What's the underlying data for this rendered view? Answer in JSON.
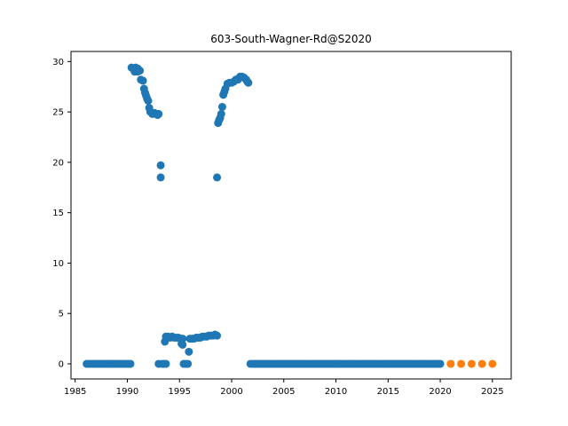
{
  "chart_data": {
    "type": "scatter",
    "title": "603-South-Wagner-Rd@S2020",
    "xlabel": "",
    "ylabel": "",
    "xlim": [
      1984.6,
      2026.8
    ],
    "ylim": [
      -1.5,
      31.0
    ],
    "xticks": [
      1985,
      1990,
      1995,
      2000,
      2005,
      2010,
      2015,
      2020,
      2025
    ],
    "yticks": [
      0,
      5,
      10,
      15,
      20,
      25,
      30
    ],
    "xtick_labels": [
      "1985",
      "1990",
      "1995",
      "2000",
      "2005",
      "2010",
      "2015",
      "2020",
      "2025"
    ],
    "ytick_labels": [
      "0",
      "5",
      "10",
      "15",
      "20",
      "25",
      "30"
    ],
    "grid": false,
    "legend": "none",
    "series": [
      {
        "color": "#1f77b4",
        "points": [
          [
            1986.1,
            0
          ],
          [
            1986.3,
            0
          ],
          [
            1986.5,
            0
          ],
          [
            1986.7,
            0
          ],
          [
            1986.9,
            0
          ],
          [
            1987.1,
            0
          ],
          [
            1987.3,
            0
          ],
          [
            1987.5,
            0
          ],
          [
            1987.7,
            0
          ],
          [
            1987.9,
            0
          ],
          [
            1988.1,
            0
          ],
          [
            1988.3,
            0
          ],
          [
            1988.5,
            0
          ],
          [
            1988.7,
            0
          ],
          [
            1988.9,
            0
          ],
          [
            1989.1,
            0
          ],
          [
            1989.3,
            0
          ],
          [
            1989.5,
            0
          ],
          [
            1989.7,
            0
          ],
          [
            1989.9,
            0
          ],
          [
            1990.1,
            0
          ],
          [
            1990.3,
            0
          ],
          [
            1990.4,
            29.4
          ],
          [
            1990.6,
            29.3
          ],
          [
            1990.8,
            29.4
          ],
          [
            1991.0,
            29.3
          ],
          [
            1991.2,
            29.1
          ],
          [
            1990.7,
            29.0
          ],
          [
            1991.0,
            29.0
          ],
          [
            1991.3,
            28.2
          ],
          [
            1991.5,
            28.1
          ],
          [
            1991.6,
            27.3
          ],
          [
            1991.7,
            26.9
          ],
          [
            1991.8,
            26.6
          ],
          [
            1991.9,
            26.3
          ],
          [
            1992.0,
            26.1
          ],
          [
            1992.1,
            25.4
          ],
          [
            1992.2,
            25.0
          ],
          [
            1992.4,
            24.8
          ],
          [
            1992.6,
            24.9
          ],
          [
            1992.9,
            24.7
          ],
          [
            1993.0,
            24.8
          ],
          [
            1993.2,
            19.7
          ],
          [
            1993.2,
            18.5
          ],
          [
            1993.0,
            0
          ],
          [
            1993.3,
            0
          ],
          [
            1993.5,
            0
          ],
          [
            1993.7,
            0
          ],
          [
            1993.6,
            2.2
          ],
          [
            1993.7,
            2.7
          ],
          [
            1993.9,
            2.7
          ],
          [
            1994.1,
            2.6
          ],
          [
            1994.3,
            2.7
          ],
          [
            1994.5,
            2.6
          ],
          [
            1994.7,
            2.6
          ],
          [
            1994.9,
            2.6
          ],
          [
            1995.1,
            2.5
          ],
          [
            1995.3,
            2.5
          ],
          [
            1995.2,
            2.0
          ],
          [
            1995.3,
            1.9
          ],
          [
            1995.4,
            0
          ],
          [
            1995.6,
            0
          ],
          [
            1995.8,
            0
          ],
          [
            1995.9,
            1.2
          ],
          [
            1996.0,
            2.5
          ],
          [
            1996.2,
            2.5
          ],
          [
            1996.4,
            2.5
          ],
          [
            1996.6,
            2.6
          ],
          [
            1996.8,
            2.6
          ],
          [
            1997.0,
            2.6
          ],
          [
            1997.2,
            2.7
          ],
          [
            1997.4,
            2.7
          ],
          [
            1997.6,
            2.7
          ],
          [
            1997.8,
            2.8
          ],
          [
            1998.0,
            2.8
          ],
          [
            1998.2,
            2.8
          ],
          [
            1998.4,
            2.9
          ],
          [
            1998.6,
            2.8
          ],
          [
            1998.6,
            18.5
          ],
          [
            1998.7,
            23.9
          ],
          [
            1998.8,
            24.2
          ],
          [
            1998.9,
            24.4
          ],
          [
            1999.0,
            24.8
          ],
          [
            1999.1,
            25.5
          ],
          [
            1999.2,
            26.7
          ],
          [
            1999.3,
            27.0
          ],
          [
            1999.4,
            27.3
          ],
          [
            1999.6,
            27.8
          ],
          [
            1999.8,
            27.9
          ],
          [
            2000.0,
            27.9
          ],
          [
            2000.2,
            28.0
          ],
          [
            2000.4,
            28.2
          ],
          [
            2000.6,
            28.2
          ],
          [
            2000.8,
            28.5
          ],
          [
            2001.0,
            28.5
          ],
          [
            2001.2,
            28.4
          ],
          [
            2001.4,
            28.2
          ],
          [
            2001.5,
            28.0
          ],
          [
            2001.6,
            27.9
          ],
          [
            2001.8,
            0
          ],
          [
            2002.0,
            0
          ],
          [
            2002.2,
            0
          ],
          [
            2002.4,
            0
          ],
          [
            2002.6,
            0
          ],
          [
            2002.8,
            0
          ],
          [
            2003.0,
            0
          ],
          [
            2003.2,
            0
          ],
          [
            2003.4,
            0
          ],
          [
            2003.6,
            0
          ],
          [
            2003.8,
            0
          ],
          [
            2004.0,
            0
          ],
          [
            2004.2,
            0
          ],
          [
            2004.4,
            0
          ],
          [
            2004.6,
            0
          ],
          [
            2004.8,
            0
          ],
          [
            2005.0,
            0
          ],
          [
            2005.2,
            0
          ],
          [
            2005.4,
            0
          ],
          [
            2005.6,
            0
          ],
          [
            2005.8,
            0
          ],
          [
            2006.0,
            0
          ],
          [
            2006.2,
            0
          ],
          [
            2006.4,
            0
          ],
          [
            2006.6,
            0
          ],
          [
            2006.8,
            0
          ],
          [
            2007.0,
            0
          ],
          [
            2007.2,
            0
          ],
          [
            2007.4,
            0
          ],
          [
            2007.6,
            0
          ],
          [
            2007.8,
            0
          ],
          [
            2008.0,
            0
          ],
          [
            2008.2,
            0
          ],
          [
            2008.4,
            0
          ],
          [
            2008.6,
            0
          ],
          [
            2008.8,
            0
          ],
          [
            2009.0,
            0
          ],
          [
            2009.2,
            0
          ],
          [
            2009.4,
            0
          ],
          [
            2009.6,
            0
          ],
          [
            2009.8,
            0
          ],
          [
            2010.0,
            0
          ],
          [
            2010.2,
            0
          ],
          [
            2010.4,
            0
          ],
          [
            2010.6,
            0
          ],
          [
            2010.8,
            0
          ],
          [
            2011.0,
            0
          ],
          [
            2011.2,
            0
          ],
          [
            2011.4,
            0
          ],
          [
            2011.6,
            0
          ],
          [
            2011.8,
            0
          ],
          [
            2012.0,
            0
          ],
          [
            2012.2,
            0
          ],
          [
            2012.4,
            0
          ],
          [
            2012.6,
            0
          ],
          [
            2012.8,
            0
          ],
          [
            2013.0,
            0
          ],
          [
            2013.2,
            0
          ],
          [
            2013.4,
            0
          ],
          [
            2013.6,
            0
          ],
          [
            2013.8,
            0
          ],
          [
            2014.0,
            0
          ],
          [
            2014.2,
            0
          ],
          [
            2014.4,
            0
          ],
          [
            2014.6,
            0
          ],
          [
            2014.8,
            0
          ],
          [
            2015.0,
            0
          ],
          [
            2015.2,
            0
          ],
          [
            2015.4,
            0
          ],
          [
            2015.6,
            0
          ],
          [
            2015.8,
            0
          ],
          [
            2016.0,
            0
          ],
          [
            2016.2,
            0
          ],
          [
            2016.4,
            0
          ],
          [
            2016.6,
            0
          ],
          [
            2016.8,
            0
          ],
          [
            2017.0,
            0
          ],
          [
            2017.2,
            0
          ],
          [
            2017.4,
            0
          ],
          [
            2017.6,
            0
          ],
          [
            2017.8,
            0
          ],
          [
            2018.0,
            0
          ],
          [
            2018.2,
            0
          ],
          [
            2018.4,
            0
          ],
          [
            2018.6,
            0
          ],
          [
            2018.8,
            0
          ],
          [
            2019.0,
            0
          ],
          [
            2019.2,
            0
          ],
          [
            2019.4,
            0
          ],
          [
            2019.6,
            0
          ],
          [
            2019.8,
            0
          ],
          [
            2020.0,
            0
          ]
        ]
      },
      {
        "color": "#ff7f0e",
        "points": [
          [
            2021.0,
            0
          ],
          [
            2022.0,
            0
          ],
          [
            2023.0,
            0
          ],
          [
            2024.0,
            0
          ],
          [
            2025.0,
            0
          ]
        ]
      }
    ]
  }
}
